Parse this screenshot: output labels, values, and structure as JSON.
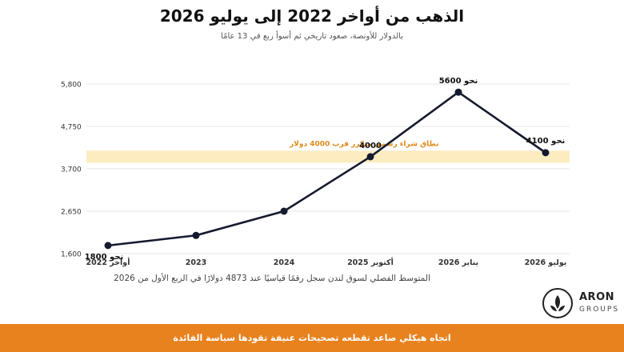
{
  "header": {
    "title": "الذهب من أواخر 2022 إلى يوليو 2026",
    "subtitle": "بالدولار للأونصة، صعود تاريخي ثم أسوأ ربع في 13 عامًا"
  },
  "chart_data": {
    "type": "line",
    "categories": [
      "أواخر 2022",
      "2023",
      "2024",
      "أكتوبر 2025",
      "يناير 2026",
      "يوليو 2026"
    ],
    "values": [
      1800,
      2050,
      2650,
      4000,
      5600,
      4100
    ],
    "data_labels": [
      "نحو 1800",
      "",
      "",
      "4000",
      "نحو 5600",
      "نحو 4100"
    ],
    "y_ticks": [
      "1,600",
      "2,650",
      "3,700",
      "4,750",
      "5,800"
    ],
    "y_tick_values": [
      1600,
      2650,
      3700,
      4750,
      5800
    ],
    "ylim": [
      1500,
      6100
    ],
    "grid": true,
    "band": {
      "from": 3850,
      "to": 4150,
      "label": "نطاق شراء رسمي متكرر قرب 4000 دولار",
      "color": "#fcecc0",
      "label_color": "#e08a1e"
    },
    "line_color": "#151a2e"
  },
  "footnote": "المتوسط الفصلي لسوق لندن سجل رقمًا قياسيًا عند 4873 دولارًا في الربع الأول من 2026",
  "logo": {
    "name": "ARON",
    "sub": "GROUPS"
  },
  "footer": {
    "text": "اتجاه هيكلي صاعد تقطعه تصحيحات عنيفة تقودها سياسة الفائدة",
    "color": "#e8821e"
  }
}
